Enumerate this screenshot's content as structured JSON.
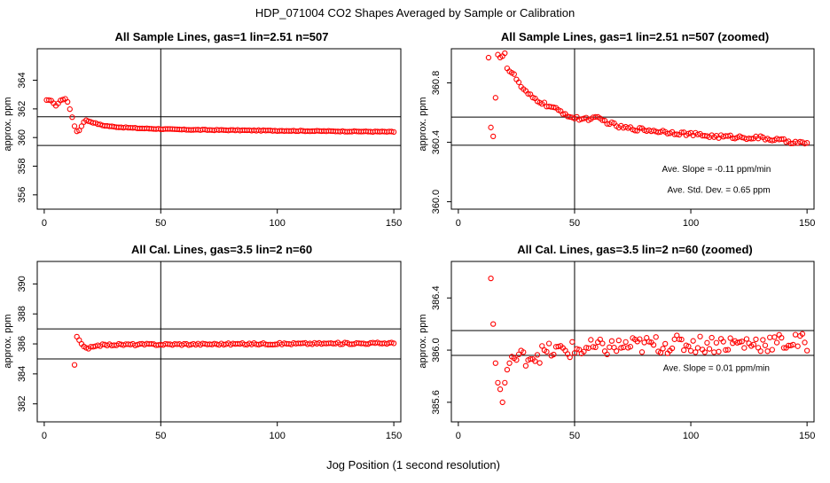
{
  "figure": {
    "title": "HDP_071004  CO2 Shapes Averaged by Sample or Calibration",
    "xlabel": "Jog Position (1 second resolution)"
  },
  "colors": {
    "points": "#ff0000",
    "lines": "#000000",
    "background": "#ffffff"
  },
  "chart_data": [
    {
      "type": "scatter",
      "title": "All Sample Lines, gas=1 lin=2.51 n=507",
      "ylabel": "approx. ppm",
      "xlim": [
        -3,
        153
      ],
      "ylim": [
        355,
        366.2
      ],
      "xticks": [
        0,
        50,
        100,
        150
      ],
      "yticks": [
        356,
        358,
        360,
        362,
        364
      ],
      "vline": 50,
      "hlines": [
        361.45,
        359.45
      ],
      "annotations": [],
      "series_gen": {
        "x_start": 1,
        "x_end": 150,
        "knots": [
          [
            1,
            362.6
          ],
          [
            3,
            362.6
          ],
          [
            5,
            362.2
          ],
          [
            7,
            362.6
          ],
          [
            9,
            362.7
          ],
          [
            10,
            362.5
          ],
          [
            11,
            362.0
          ],
          [
            12,
            361.4
          ],
          [
            13,
            360.8
          ],
          [
            14,
            360.45
          ],
          [
            15,
            360.5
          ],
          [
            16,
            360.8
          ],
          [
            17,
            361.1
          ],
          [
            18,
            361.2
          ],
          [
            20,
            361.1
          ],
          [
            25,
            360.85
          ],
          [
            30,
            360.75
          ],
          [
            40,
            360.65
          ],
          [
            60,
            360.55
          ],
          [
            100,
            360.48
          ],
          [
            150,
            360.4
          ]
        ],
        "noise": 0.025
      }
    },
    {
      "type": "scatter",
      "title": "All Sample Lines, gas=1 lin=2.51 n=507 (zoomed)",
      "ylabel": "approx. ppm",
      "xlim": [
        -3,
        153
      ],
      "ylim": [
        359.95,
        361.03
      ],
      "xticks": [
        0,
        50,
        100,
        150
      ],
      "yticks": [
        360.0,
        360.4,
        360.8
      ],
      "ytick_labels": [
        "360.0",
        "360.4",
        "360.8"
      ],
      "vline": 50,
      "hlines": [
        360.57,
        360.38
      ],
      "annotations": [
        {
          "text": "Ave. Slope =  -0.11  ppm/min",
          "x": 111,
          "y": 360.2
        },
        {
          "text": "Ave. Std. Dev. =  0.65  ppm",
          "x": 112,
          "y": 360.06
        }
      ],
      "series_gen": {
        "x_start": 13,
        "x_end": 150,
        "special": [
          [
            13,
            360.97
          ],
          [
            14,
            360.5
          ],
          [
            15,
            360.44
          ],
          [
            16,
            360.7
          ],
          [
            17,
            360.99
          ],
          [
            19,
            360.98
          ],
          [
            20,
            361.0
          ]
        ],
        "knots": [
          [
            20,
            360.98
          ],
          [
            21,
            360.9
          ],
          [
            24,
            360.85
          ],
          [
            28,
            360.75
          ],
          [
            32,
            360.7
          ],
          [
            38,
            360.65
          ],
          [
            45,
            360.6
          ],
          [
            50,
            360.56
          ],
          [
            60,
            360.56
          ],
          [
            70,
            360.5
          ],
          [
            90,
            360.47
          ],
          [
            110,
            360.44
          ],
          [
            130,
            360.43
          ],
          [
            150,
            360.39
          ]
        ],
        "noise": 0.012
      }
    },
    {
      "type": "scatter",
      "title": "All Cal. Lines, gas=3.5 lin=2 n=60",
      "ylabel": "approx. ppm",
      "xlim": [
        -3,
        153
      ],
      "ylim": [
        380.8,
        391.5
      ],
      "xticks": [
        0,
        50,
        100,
        150
      ],
      "yticks": [
        382,
        384,
        386,
        388,
        390
      ],
      "vline": 50,
      "hlines": [
        387.0,
        385.0
      ],
      "annotations": [],
      "series_gen": {
        "x_start": 13,
        "x_end": 150,
        "special": [
          [
            13,
            384.6
          ]
        ],
        "knots": [
          [
            14,
            386.5
          ],
          [
            15,
            386.2
          ],
          [
            16,
            386.0
          ],
          [
            17,
            385.8
          ],
          [
            18,
            385.7
          ],
          [
            19,
            385.65
          ],
          [
            20,
            385.75
          ],
          [
            22,
            385.9
          ],
          [
            30,
            385.95
          ],
          [
            150,
            386.05
          ]
        ],
        "noise": 0.06
      }
    },
    {
      "type": "scatter",
      "title": "All Cal. Lines, gas=3.5 lin=2 n=60 (zoomed)",
      "ylabel": "approx. ppm",
      "xlim": [
        -3,
        153
      ],
      "ylim": [
        385.45,
        386.68
      ],
      "xticks": [
        0,
        50,
        100,
        150
      ],
      "yticks": [
        385.6,
        386.0,
        386.4
      ],
      "ytick_labels": [
        "385.6",
        "386.0",
        "386.4"
      ],
      "vline": 50,
      "hlines": [
        386.15,
        385.96
      ],
      "annotations": [
        {
          "text": "Ave. Slope =  0.01  ppm/min",
          "x": 111,
          "y": 385.84
        }
      ],
      "series_gen": {
        "x_start": 14,
        "x_end": 150,
        "special": [
          [
            14,
            386.55
          ],
          [
            15,
            386.2
          ],
          [
            16,
            385.9
          ],
          [
            17,
            385.75
          ],
          [
            18,
            385.7
          ],
          [
            19,
            385.6
          ],
          [
            20,
            385.75
          ],
          [
            21,
            385.85
          ],
          [
            22,
            385.9
          ],
          [
            23,
            385.95
          ]
        ],
        "knots": [
          [
            24,
            385.93
          ],
          [
            40,
            385.99
          ],
          [
            80,
            386.04
          ],
          [
            150,
            386.06
          ]
        ],
        "noise": 0.07
      }
    }
  ]
}
